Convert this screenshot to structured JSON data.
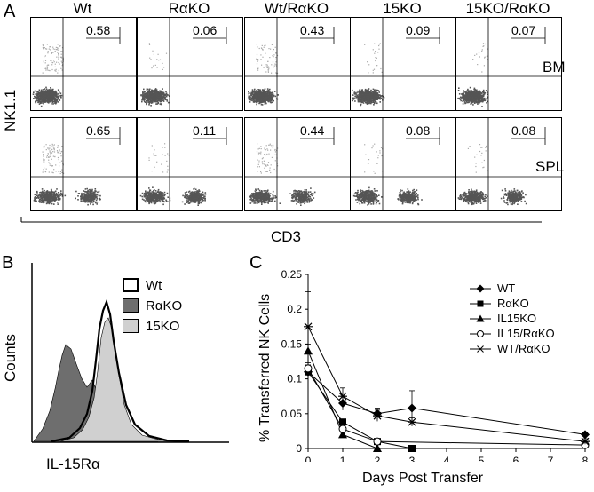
{
  "panel_a": {
    "letter": "A",
    "genotypes": [
      "Wt",
      "RαKO",
      "Wt/RαKO",
      "15KO",
      "15KO/RαKO"
    ],
    "rows": [
      {
        "tissue": "BM",
        "percents": [
          "0.58",
          "0.06",
          "0.43",
          "0.09",
          "0.07"
        ]
      },
      {
        "tissue": "SPL",
        "percents": [
          "0.65",
          "0.11",
          "0.44",
          "0.08",
          "0.08"
        ]
      }
    ],
    "y_label": "NK1.1",
    "x_label": "CD3"
  },
  "panel_b": {
    "letter": "B",
    "y_label": "Counts",
    "x_label": "IL-15Rα",
    "legend": [
      {
        "label": "Wt",
        "style": "open",
        "color": "#000000"
      },
      {
        "label": "RαKO",
        "style": "filled",
        "color": "#6e6e6e"
      },
      {
        "label": "15KO",
        "style": "filled",
        "color": "#d0d0d0"
      }
    ]
  },
  "panel_c": {
    "letter": "C",
    "chart_data": {
      "type": "line",
      "title": "",
      "xlabel": "Days Post Transfer",
      "ylabel": "% Transferred NK Cells",
      "xlim": [
        0,
        8
      ],
      "ylim": [
        0,
        0.25
      ],
      "x_ticks": [
        "0",
        "1",
        "2",
        "3",
        "4",
        "5",
        "6",
        "7",
        "8"
      ],
      "y_ticks": [
        "0",
        "0.05",
        "0.1",
        "0.15",
        "0.2",
        "0.25"
      ],
      "legend_position": "top-right",
      "series": [
        {
          "name": "WT",
          "marker": "diamond",
          "x": [
            0,
            1,
            2,
            3,
            8
          ],
          "y": [
            0.11,
            0.065,
            0.05,
            0.058,
            0.02
          ],
          "err": [
            0.01,
            0.01,
            0.008,
            0.025,
            0.003
          ]
        },
        {
          "name": "RαKO",
          "marker": "square",
          "x": [
            0,
            1,
            2,
            3
          ],
          "y": [
            0.11,
            0.038,
            0.01,
            0.0
          ],
          "err": [
            0.008,
            0.004,
            0.003,
            0.001
          ]
        },
        {
          "name": "IL15KO",
          "marker": "triangle",
          "x": [
            0,
            1,
            2
          ],
          "y": [
            0.14,
            0.02,
            0.0
          ],
          "err": [
            0.01,
            0.003,
            0.001
          ]
        },
        {
          "name": "IL15/RαKO",
          "marker": "circle",
          "x": [
            0,
            1,
            2,
            8
          ],
          "y": [
            0.115,
            0.028,
            0.01,
            0.005
          ],
          "err": [
            0.008,
            0.004,
            0.002,
            0.002
          ]
        },
        {
          "name": "WT/RαKO",
          "marker": "star",
          "x": [
            0,
            1,
            2,
            3,
            8
          ],
          "y": [
            0.175,
            0.075,
            0.047,
            0.038,
            0.01
          ],
          "err": [
            0.05,
            0.012,
            0.008,
            0.006,
            0.004
          ]
        }
      ]
    }
  }
}
